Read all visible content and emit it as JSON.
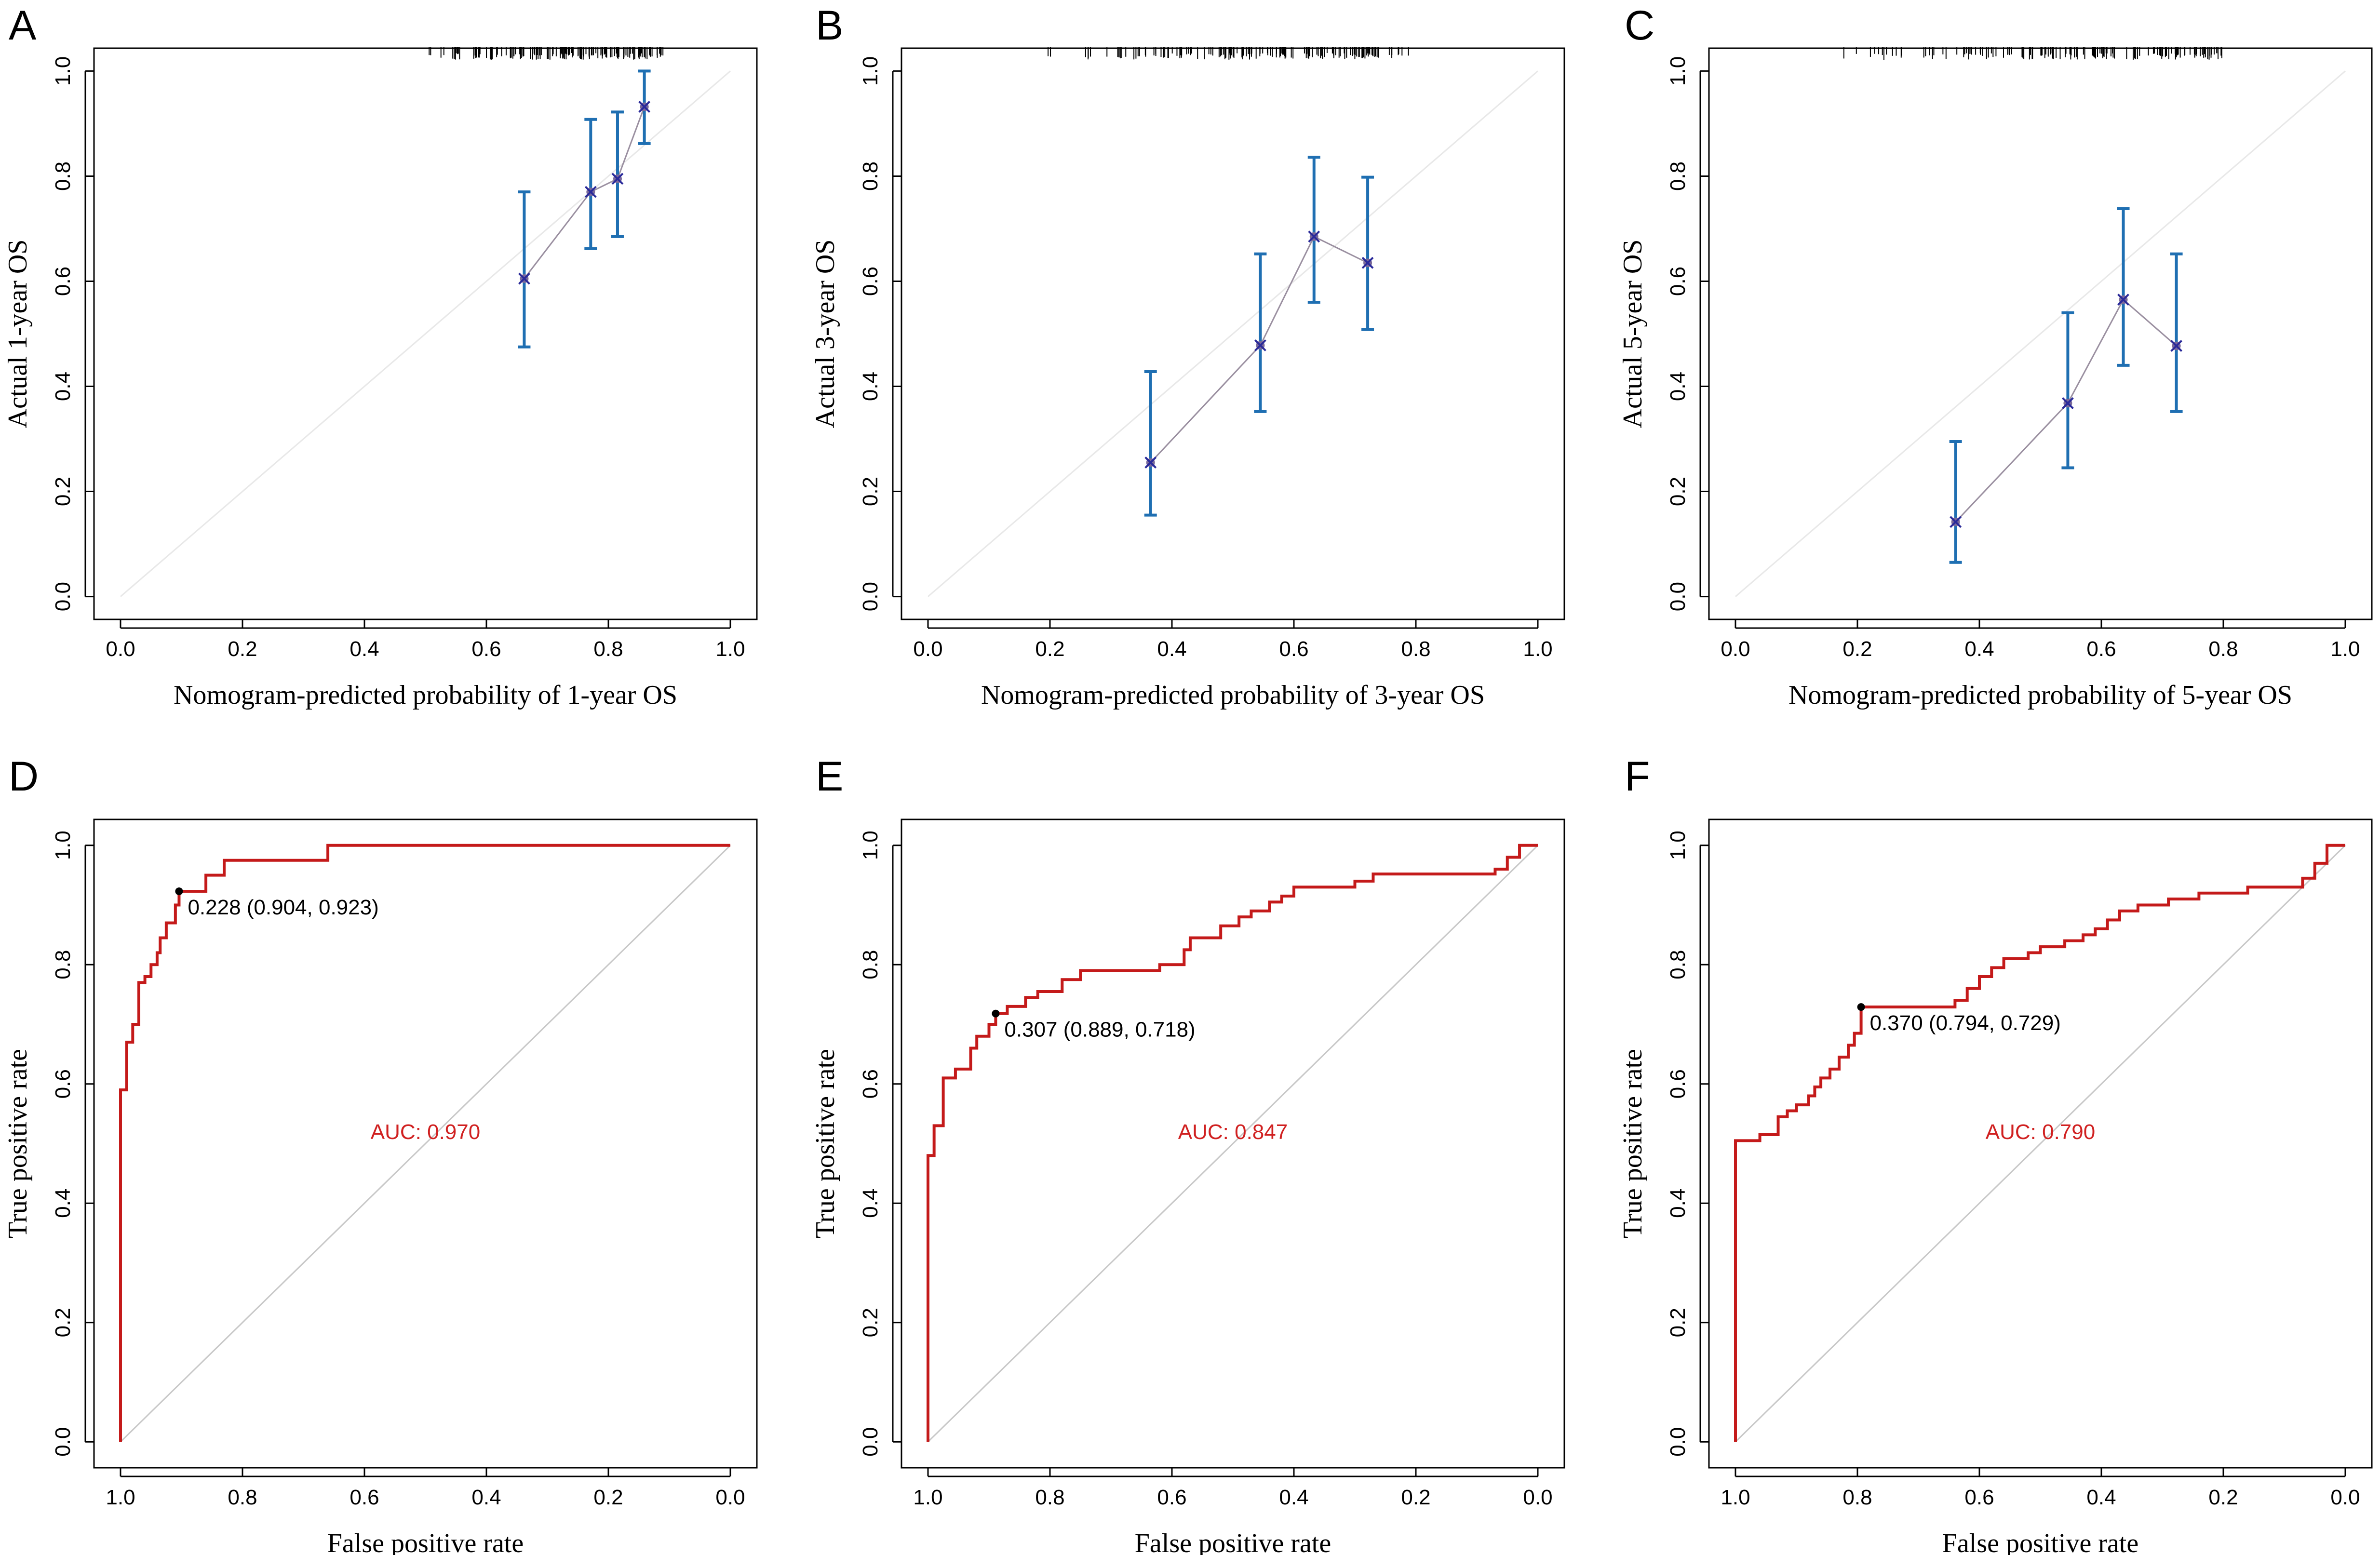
{
  "chart_data": [
    {
      "panel": "A",
      "type": "line",
      "subtype": "calibration",
      "title": "",
      "xlabel": "Nomogram-predicted probability of 1-year OS",
      "ylabel": "Actual 1-year OS",
      "xlim": [
        0,
        1
      ],
      "ylim": [
        0,
        1
      ],
      "xticks": [
        "0.0",
        "0.2",
        "0.4",
        "0.6",
        "0.8",
        "1.0"
      ],
      "yticks": [
        "0.0",
        "0.2",
        "0.4",
        "0.6",
        "0.8",
        "1.0"
      ],
      "rug_range": [
        0.5,
        0.89
      ],
      "points": [
        {
          "x": 0.662,
          "y": 0.605,
          "lo": 0.475,
          "hi": 0.77
        },
        {
          "x": 0.771,
          "y": 0.77,
          "lo": 0.662,
          "hi": 0.908
        },
        {
          "x": 0.815,
          "y": 0.795,
          "lo": 0.685,
          "hi": 0.922
        },
        {
          "x": 0.859,
          "y": 0.932,
          "lo": 0.862,
          "hi": 1.0
        }
      ],
      "colors": {
        "errorbar": "#1f6fb2",
        "marker": "#2a2a9a",
        "line": "#9a8fa0",
        "diagonal": "#e8e8e8"
      }
    },
    {
      "panel": "B",
      "type": "line",
      "subtype": "calibration",
      "title": "",
      "xlabel": "Nomogram-predicted probability of 3-year OS",
      "ylabel": "Actual 3-year OS",
      "xlim": [
        0,
        1
      ],
      "ylim": [
        0,
        1
      ],
      "xticks": [
        "0.0",
        "0.2",
        "0.4",
        "0.6",
        "0.8",
        "1.0"
      ],
      "yticks": [
        "0.0",
        "0.2",
        "0.4",
        "0.6",
        "0.8",
        "1.0"
      ],
      "rug_range": [
        0.16,
        0.79
      ],
      "points": [
        {
          "x": 0.365,
          "y": 0.255,
          "lo": 0.155,
          "hi": 0.428
        },
        {
          "x": 0.545,
          "y": 0.478,
          "lo": 0.352,
          "hi": 0.652
        },
        {
          "x": 0.633,
          "y": 0.685,
          "lo": 0.56,
          "hi": 0.836
        },
        {
          "x": 0.721,
          "y": 0.635,
          "lo": 0.508,
          "hi": 0.798
        }
      ],
      "colors": {
        "errorbar": "#1f6fb2",
        "marker": "#2a2a9a",
        "line": "#9a8fa0",
        "diagonal": "#e8e8e8"
      }
    },
    {
      "panel": "C",
      "type": "line",
      "subtype": "calibration",
      "title": "",
      "xlabel": "Nomogram-predicted probability of 5-year OS",
      "ylabel": "Actual 5-year OS",
      "xlim": [
        0,
        1
      ],
      "ylim": [
        0,
        1
      ],
      "xticks": [
        "0.0",
        "0.2",
        "0.4",
        "0.6",
        "0.8",
        "1.0"
      ],
      "yticks": [
        "0.0",
        "0.2",
        "0.4",
        "0.6",
        "0.8",
        "1.0"
      ],
      "rug_range": [
        0.16,
        0.8
      ],
      "points": [
        {
          "x": 0.361,
          "y": 0.142,
          "lo": 0.065,
          "hi": 0.295
        },
        {
          "x": 0.545,
          "y": 0.368,
          "lo": 0.245,
          "hi": 0.54
        },
        {
          "x": 0.636,
          "y": 0.565,
          "lo": 0.44,
          "hi": 0.738
        },
        {
          "x": 0.723,
          "y": 0.477,
          "lo": 0.352,
          "hi": 0.652
        }
      ],
      "colors": {
        "errorbar": "#1f6fb2",
        "marker": "#2a2a9a",
        "line": "#9a8fa0",
        "diagonal": "#e8e8e8"
      }
    },
    {
      "panel": "D",
      "type": "line",
      "subtype": "roc",
      "title": "",
      "xlabel": "False positive rate",
      "ylabel": "True positive rate",
      "xlim": [
        1,
        0
      ],
      "ylim": [
        0,
        1
      ],
      "xticks": [
        "1.0",
        "0.8",
        "0.6",
        "0.4",
        "0.2",
        "0.0"
      ],
      "yticks": [
        "0.0",
        "0.2",
        "0.4",
        "0.6",
        "0.8",
        "1.0"
      ],
      "auc_label": "AUC: 0.970",
      "auc_pos": [
        0.5,
        0.52
      ],
      "threshold_point": {
        "x": 0.904,
        "y": 0.923,
        "label": "0.228 (0.904, 0.923)"
      },
      "curve": [
        [
          1.0,
          0
        ],
        [
          1.0,
          0.59
        ],
        [
          0.99,
          0.59
        ],
        [
          0.99,
          0.67
        ],
        [
          0.98,
          0.67
        ],
        [
          0.98,
          0.7
        ],
        [
          0.97,
          0.7
        ],
        [
          0.97,
          0.77
        ],
        [
          0.96,
          0.77
        ],
        [
          0.96,
          0.78
        ],
        [
          0.95,
          0.78
        ],
        [
          0.95,
          0.8
        ],
        [
          0.94,
          0.8
        ],
        [
          0.94,
          0.82
        ],
        [
          0.935,
          0.82
        ],
        [
          0.935,
          0.845
        ],
        [
          0.925,
          0.845
        ],
        [
          0.925,
          0.87
        ],
        [
          0.91,
          0.87
        ],
        [
          0.91,
          0.9
        ],
        [
          0.904,
          0.9
        ],
        [
          0.904,
          0.923
        ],
        [
          0.86,
          0.923
        ],
        [
          0.86,
          0.95
        ],
        [
          0.83,
          0.95
        ],
        [
          0.83,
          0.975
        ],
        [
          0.66,
          0.975
        ],
        [
          0.66,
          1.0
        ],
        [
          0.0,
          1.0
        ]
      ],
      "colors": {
        "curve": "#c41a1a",
        "diagonal": "#c8c8c8"
      }
    },
    {
      "panel": "E",
      "type": "line",
      "subtype": "roc",
      "title": "",
      "xlabel": "False positive rate",
      "ylabel": "True positive rate",
      "xlim": [
        1,
        0
      ],
      "ylim": [
        0,
        1
      ],
      "xticks": [
        "1.0",
        "0.8",
        "0.6",
        "0.4",
        "0.2",
        "0.0"
      ],
      "yticks": [
        "0.0",
        "0.2",
        "0.4",
        "0.6",
        "0.8",
        "1.0"
      ],
      "auc_label": "AUC: 0.847",
      "auc_pos": [
        0.5,
        0.52
      ],
      "threshold_point": {
        "x": 0.889,
        "y": 0.718,
        "label": "0.307 (0.889, 0.718)"
      },
      "curve": [
        [
          1.0,
          0
        ],
        [
          1.0,
          0.48
        ],
        [
          0.99,
          0.48
        ],
        [
          0.99,
          0.53
        ],
        [
          0.975,
          0.53
        ],
        [
          0.975,
          0.61
        ],
        [
          0.955,
          0.61
        ],
        [
          0.955,
          0.625
        ],
        [
          0.93,
          0.625
        ],
        [
          0.93,
          0.66
        ],
        [
          0.92,
          0.66
        ],
        [
          0.92,
          0.68
        ],
        [
          0.9,
          0.68
        ],
        [
          0.9,
          0.7
        ],
        [
          0.889,
          0.7
        ],
        [
          0.889,
          0.718
        ],
        [
          0.87,
          0.718
        ],
        [
          0.87,
          0.73
        ],
        [
          0.84,
          0.73
        ],
        [
          0.84,
          0.745
        ],
        [
          0.82,
          0.745
        ],
        [
          0.82,
          0.755
        ],
        [
          0.78,
          0.755
        ],
        [
          0.78,
          0.775
        ],
        [
          0.75,
          0.775
        ],
        [
          0.75,
          0.79
        ],
        [
          0.62,
          0.79
        ],
        [
          0.62,
          0.8
        ],
        [
          0.58,
          0.8
        ],
        [
          0.58,
          0.825
        ],
        [
          0.57,
          0.825
        ],
        [
          0.57,
          0.845
        ],
        [
          0.52,
          0.845
        ],
        [
          0.52,
          0.865
        ],
        [
          0.49,
          0.865
        ],
        [
          0.49,
          0.88
        ],
        [
          0.47,
          0.88
        ],
        [
          0.47,
          0.89
        ],
        [
          0.44,
          0.89
        ],
        [
          0.44,
          0.905
        ],
        [
          0.42,
          0.905
        ],
        [
          0.42,
          0.915
        ],
        [
          0.4,
          0.915
        ],
        [
          0.4,
          0.93
        ],
        [
          0.3,
          0.93
        ],
        [
          0.3,
          0.94
        ],
        [
          0.27,
          0.94
        ],
        [
          0.27,
          0.952
        ],
        [
          0.07,
          0.952
        ],
        [
          0.07,
          0.96
        ],
        [
          0.05,
          0.96
        ],
        [
          0.05,
          0.98
        ],
        [
          0.03,
          0.98
        ],
        [
          0.03,
          1.0
        ],
        [
          0.0,
          1.0
        ]
      ],
      "colors": {
        "curve": "#c41a1a",
        "diagonal": "#c8c8c8"
      }
    },
    {
      "panel": "F",
      "type": "line",
      "subtype": "roc",
      "title": "",
      "xlabel": "False positive rate",
      "ylabel": "True positive rate",
      "xlim": [
        1,
        0
      ],
      "ylim": [
        0,
        1
      ],
      "xticks": [
        "1.0",
        "0.8",
        "0.6",
        "0.4",
        "0.2",
        "0.0"
      ],
      "yticks": [
        "0.0",
        "0.2",
        "0.4",
        "0.6",
        "0.8",
        "1.0"
      ],
      "auc_label": "AUC: 0.790",
      "auc_pos": [
        0.5,
        0.52
      ],
      "threshold_point": {
        "x": 0.794,
        "y": 0.729,
        "label": "0.370 (0.794, 0.729)"
      },
      "curve": [
        [
          1.0,
          0
        ],
        [
          1.0,
          0.505
        ],
        [
          0.96,
          0.505
        ],
        [
          0.96,
          0.515
        ],
        [
          0.93,
          0.515
        ],
        [
          0.93,
          0.545
        ],
        [
          0.915,
          0.545
        ],
        [
          0.915,
          0.555
        ],
        [
          0.9,
          0.555
        ],
        [
          0.9,
          0.565
        ],
        [
          0.88,
          0.565
        ],
        [
          0.88,
          0.58
        ],
        [
          0.87,
          0.58
        ],
        [
          0.87,
          0.595
        ],
        [
          0.86,
          0.595
        ],
        [
          0.86,
          0.61
        ],
        [
          0.845,
          0.61
        ],
        [
          0.845,
          0.625
        ],
        [
          0.83,
          0.625
        ],
        [
          0.83,
          0.645
        ],
        [
          0.815,
          0.645
        ],
        [
          0.815,
          0.665
        ],
        [
          0.805,
          0.665
        ],
        [
          0.805,
          0.685
        ],
        [
          0.794,
          0.685
        ],
        [
          0.794,
          0.729
        ],
        [
          0.64,
          0.729
        ],
        [
          0.64,
          0.74
        ],
        [
          0.62,
          0.74
        ],
        [
          0.62,
          0.76
        ],
        [
          0.6,
          0.76
        ],
        [
          0.6,
          0.78
        ],
        [
          0.58,
          0.78
        ],
        [
          0.58,
          0.795
        ],
        [
          0.56,
          0.795
        ],
        [
          0.56,
          0.81
        ],
        [
          0.52,
          0.81
        ],
        [
          0.52,
          0.82
        ],
        [
          0.5,
          0.82
        ],
        [
          0.5,
          0.83
        ],
        [
          0.46,
          0.83
        ],
        [
          0.46,
          0.84
        ],
        [
          0.43,
          0.84
        ],
        [
          0.43,
          0.85
        ],
        [
          0.41,
          0.85
        ],
        [
          0.41,
          0.86
        ],
        [
          0.39,
          0.86
        ],
        [
          0.39,
          0.875
        ],
        [
          0.37,
          0.875
        ],
        [
          0.37,
          0.89
        ],
        [
          0.34,
          0.89
        ],
        [
          0.34,
          0.9
        ],
        [
          0.29,
          0.9
        ],
        [
          0.29,
          0.91
        ],
        [
          0.24,
          0.91
        ],
        [
          0.24,
          0.92
        ],
        [
          0.16,
          0.92
        ],
        [
          0.16,
          0.93
        ],
        [
          0.07,
          0.93
        ],
        [
          0.07,
          0.945
        ],
        [
          0.05,
          0.945
        ],
        [
          0.05,
          0.97
        ],
        [
          0.03,
          0.97
        ],
        [
          0.03,
          1.0
        ],
        [
          0.0,
          1.0
        ]
      ],
      "colors": {
        "curve": "#c41a1a",
        "diagonal": "#c8c8c8"
      }
    }
  ]
}
